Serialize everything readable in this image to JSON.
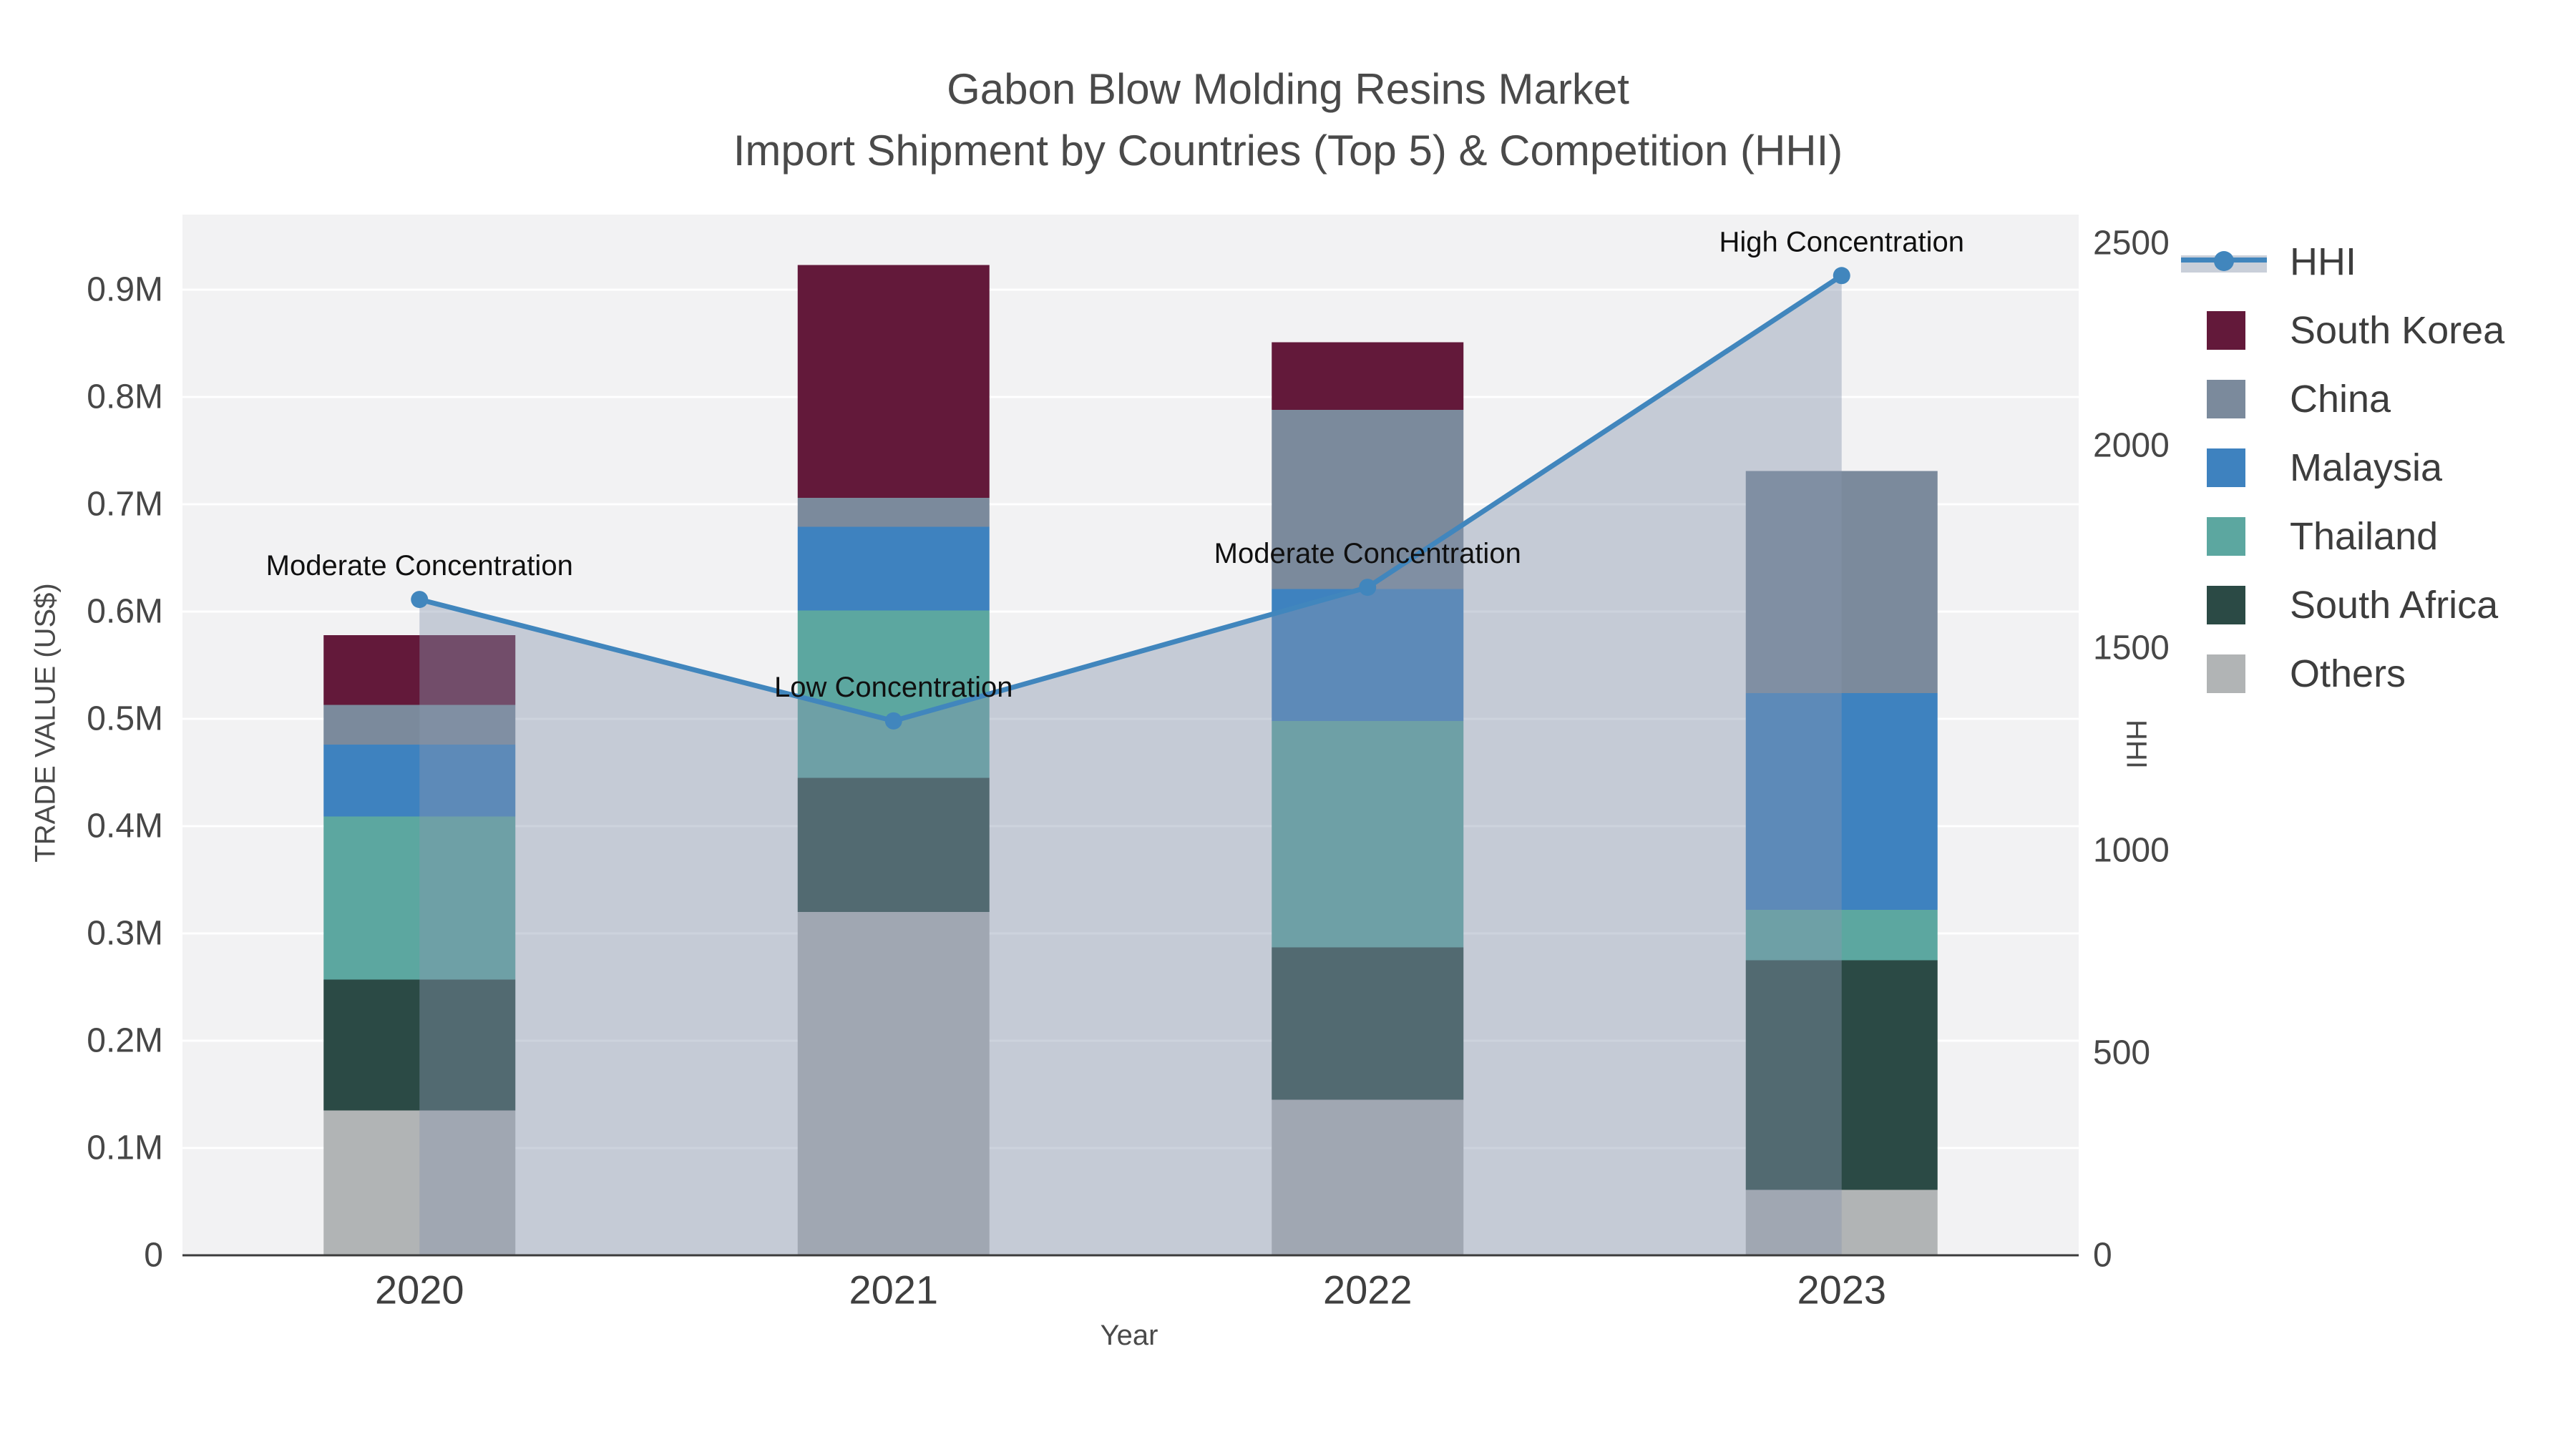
{
  "title": {
    "line1": "Gabon Blow Molding Resins Market",
    "line2": "Import Shipment by Countries (Top 5) & Competition (HHI)"
  },
  "axes": {
    "x_label": "Year",
    "y_left_label": "TRADE VALUE (US$)",
    "y_right_label": "HHI",
    "x_ticks": [
      "2020",
      "2021",
      "2022",
      "2023"
    ],
    "y_left_ticks": [
      "0",
      "0.1M",
      "0.2M",
      "0.3M",
      "0.4M",
      "0.5M",
      "0.6M",
      "0.7M",
      "0.8M",
      "0.9M"
    ],
    "y_right_ticks": [
      "0",
      "500",
      "1000",
      "1500",
      "2000",
      "2500"
    ]
  },
  "chart_data": {
    "type": "combo: stacked-bar + line-area (secondary axis)",
    "title": "Gabon Blow Molding Resins Market — Import Shipment by Countries (Top 5) & Competition (HHI)",
    "categories": [
      "2020",
      "2021",
      "2022",
      "2023"
    ],
    "value_unit": "US$",
    "xlabel": "Year",
    "ylabel_left": "TRADE VALUE (US$)",
    "ylabel_right": "HHI",
    "y_left_max": 970000,
    "y_right_range": [
      0,
      2500
    ],
    "grid": "horizontal white gridlines on light gray plot background",
    "legend_position": "right",
    "series": [
      {
        "name": "Others",
        "color": "#b1b4b5",
        "values": [
          135000,
          320000,
          145000,
          61000
        ]
      },
      {
        "name": "South Africa",
        "color": "#2b4a45",
        "values": [
          122000,
          125000,
          142000,
          214000
        ]
      },
      {
        "name": "Thailand",
        "color": "#5ca7a0",
        "values": [
          152000,
          156000,
          211000,
          47000
        ]
      },
      {
        "name": "Malaysia",
        "color": "#3e82bf",
        "values": [
          67000,
          78000,
          123000,
          202000
        ]
      },
      {
        "name": "China",
        "color": "#7b8a9c",
        "values": [
          37000,
          27000,
          167000,
          207000
        ]
      },
      {
        "name": "South Korea",
        "color": "#63193a",
        "values": [
          65000,
          217000,
          63000,
          0
        ]
      }
    ],
    "hhi_line": {
      "name": "HHI",
      "color": "#4186bd",
      "area_color": "rgba(136,150,174,0.42)",
      "values": [
        1620,
        1320,
        1650,
        2420
      ]
    },
    "annotations": [
      "Moderate Concentration",
      "Low Concentration",
      "Moderate Concentration",
      "High Concentration"
    ]
  },
  "legend": {
    "items": [
      {
        "label": "HHI",
        "type": "line",
        "color": "#4186bd",
        "band_color": "#c9cfd9"
      },
      {
        "label": "South Korea",
        "type": "box",
        "color": "#63193a"
      },
      {
        "label": "China",
        "type": "box",
        "color": "#7b8a9c"
      },
      {
        "label": "Malaysia",
        "type": "box",
        "color": "#3e82bf"
      },
      {
        "label": "Thailand",
        "type": "box",
        "color": "#5ca7a0"
      },
      {
        "label": "South Africa",
        "type": "box",
        "color": "#2b4a45"
      },
      {
        "label": "Others",
        "type": "box",
        "color": "#b1b4b5"
      }
    ]
  }
}
